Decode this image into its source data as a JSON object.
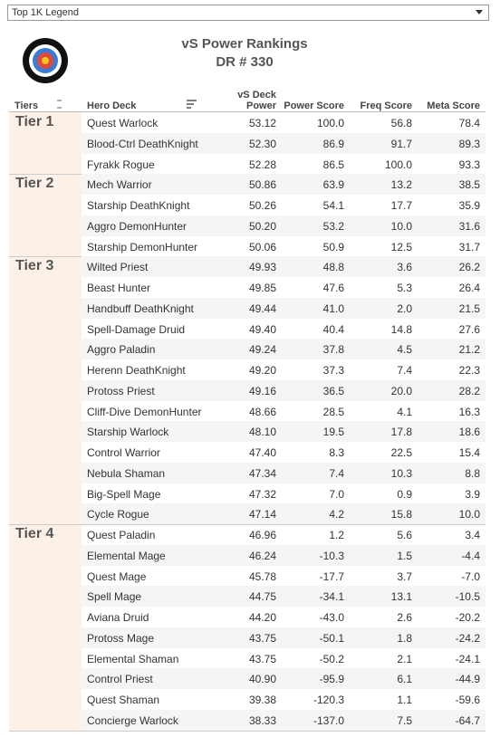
{
  "filter": {
    "selected": "Top 1K Legend"
  },
  "header": {
    "title": "vS Power Rankings",
    "subtitle": "DR # 330"
  },
  "table": {
    "columns": [
      "Tiers",
      "Hero Deck",
      "vS Deck\nPower",
      "Power Score",
      "Freq Score",
      "Meta Score"
    ],
    "tiers": [
      {
        "name": "Tier 1",
        "rows": [
          [
            "Quest Warlock",
            "53.12",
            "100.0",
            "56.8",
            "78.4"
          ],
          [
            "Blood-Ctrl DeathKnight",
            "52.30",
            "86.9",
            "91.7",
            "89.3"
          ],
          [
            "Fyrakk Rogue",
            "52.28",
            "86.5",
            "100.0",
            "93.3"
          ]
        ]
      },
      {
        "name": "Tier 2",
        "rows": [
          [
            "Mech Warrior",
            "50.86",
            "63.9",
            "13.2",
            "38.5"
          ],
          [
            "Starship DeathKnight",
            "50.26",
            "54.1",
            "17.7",
            "35.9"
          ],
          [
            "Aggro DemonHunter",
            "50.20",
            "53.2",
            "10.0",
            "31.6"
          ],
          [
            "Starship DemonHunter",
            "50.06",
            "50.9",
            "12.5",
            "31.7"
          ]
        ]
      },
      {
        "name": "Tier 3",
        "rows": [
          [
            "Wilted Priest",
            "49.93",
            "48.8",
            "3.6",
            "26.2"
          ],
          [
            "Beast Hunter",
            "49.85",
            "47.6",
            "5.3",
            "26.4"
          ],
          [
            "Handbuff DeathKnight",
            "49.44",
            "41.0",
            "2.0",
            "21.5"
          ],
          [
            "Spell-Damage Druid",
            "49.40",
            "40.4",
            "14.8",
            "27.6"
          ],
          [
            "Aggro Paladin",
            "49.24",
            "37.8",
            "4.5",
            "21.2"
          ],
          [
            "Herenn DeathKnight",
            "49.20",
            "37.3",
            "7.4",
            "22.3"
          ],
          [
            "Protoss Priest",
            "49.16",
            "36.5",
            "20.0",
            "28.2"
          ],
          [
            "Cliff-Dive DemonHunter",
            "48.66",
            "28.5",
            "4.1",
            "16.3"
          ],
          [
            "Starship Warlock",
            "48.10",
            "19.5",
            "17.8",
            "18.6"
          ],
          [
            "Control Warrior",
            "47.40",
            "8.3",
            "22.5",
            "15.4"
          ],
          [
            "Nebula Shaman",
            "47.34",
            "7.4",
            "10.3",
            "8.8"
          ],
          [
            "Big-Spell Mage",
            "47.32",
            "7.0",
            "0.9",
            "3.9"
          ],
          [
            "Cycle Rogue",
            "47.14",
            "4.2",
            "15.8",
            "10.0"
          ]
        ]
      },
      {
        "name": "Tier 4",
        "rows": [
          [
            "Quest Paladin",
            "46.96",
            "1.2",
            "5.6",
            "3.4"
          ],
          [
            "Elemental Mage",
            "46.24",
            "-10.3",
            "1.5",
            "-4.4"
          ],
          [
            "Quest Mage",
            "45.78",
            "-17.7",
            "3.7",
            "-7.0"
          ],
          [
            "Spell Mage",
            "44.75",
            "-34.1",
            "13.1",
            "-10.5"
          ],
          [
            "Aviana Druid",
            "44.20",
            "-43.0",
            "2.6",
            "-20.2"
          ],
          [
            "Protoss Mage",
            "43.75",
            "-50.1",
            "1.8",
            "-24.2"
          ],
          [
            "Elemental Shaman",
            "43.75",
            "-50.2",
            "2.1",
            "-24.1"
          ],
          [
            "Control Priest",
            "40.90",
            "-95.9",
            "6.1",
            "-44.9"
          ],
          [
            "Quest Shaman",
            "39.38",
            "-120.3",
            "1.1",
            "-59.6"
          ],
          [
            "Concierge Warlock",
            "38.33",
            "-137.0",
            "7.5",
            "-64.7"
          ]
        ]
      }
    ]
  }
}
